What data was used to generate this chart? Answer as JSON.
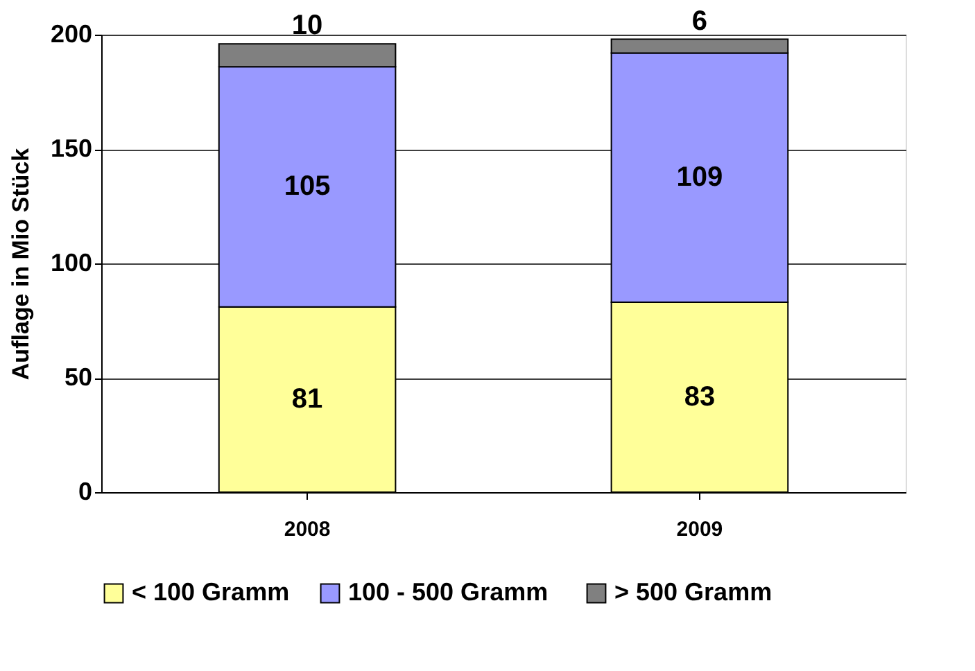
{
  "chart_data": {
    "type": "bar",
    "stacked": true,
    "ylabel": "Auflage in Mio Stück",
    "categories": [
      "2008",
      "2009"
    ],
    "series": [
      {
        "name": "< 100 Gramm",
        "color": "#ffff99",
        "values": [
          81,
          83
        ]
      },
      {
        "name": "100 -  500 Gramm",
        "color": "#9999ff",
        "values": [
          105,
          109
        ]
      },
      {
        "name": "> 500 Gramm",
        "color": "#808080",
        "values": [
          10,
          6
        ]
      }
    ],
    "ylim": [
      0,
      200
    ],
    "yticks": [
      0,
      50,
      100,
      150,
      200
    ],
    "grid": "y",
    "legend": "bottom",
    "data_labels": true
  }
}
